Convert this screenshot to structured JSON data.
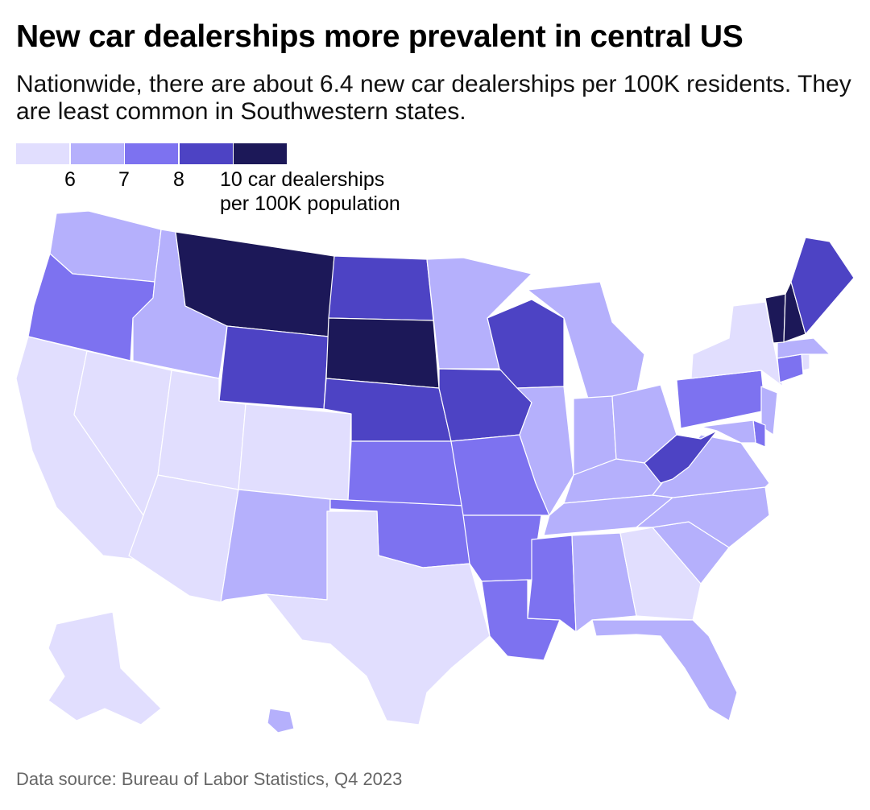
{
  "title": "New car dealerships more prevalent in central US",
  "subtitle": "Nationwide, there are about 6.4 new car dealerships per 100K residents. They are least common in Southwestern states.",
  "legend": {
    "bins": [
      {
        "label": "<6",
        "color": "#e1defe"
      },
      {
        "label": "6–7",
        "color": "#b5b0fc"
      },
      {
        "label": "7–8",
        "color": "#7d72f0"
      },
      {
        "label": "8–10",
        "color": "#4d43c4"
      },
      {
        "label": "10+",
        "color": "#1c1858"
      }
    ],
    "ticks": [
      "6",
      "7",
      "8",
      "10 car dealerships"
    ],
    "unit_line2": "per 100K population"
  },
  "source": "Data source: Bureau of Labor Statistics, Q4 2023",
  "chart_data": {
    "type": "choropleth",
    "title": "New car dealerships more prevalent in central US",
    "measure": "New car dealerships per 100K population",
    "national_average": 6.4,
    "bin_breaks": [
      6,
      7,
      8,
      10
    ],
    "state_bins": {
      "WA": 1,
      "OR": 2,
      "CA": 0,
      "NV": 0,
      "ID": 1,
      "MT": 4,
      "WY": 3,
      "UT": 0,
      "AZ": 0,
      "CO": 0,
      "NM": 1,
      "ND": 3,
      "SD": 4,
      "NE": 3,
      "KS": 2,
      "OK": 2,
      "TX": 0,
      "MN": 1,
      "IA": 3,
      "MO": 2,
      "AR": 2,
      "LA": 2,
      "WI": 3,
      "IL": 1,
      "MS": 2,
      "MI": 1,
      "IN": 1,
      "OH": 1,
      "KY": 1,
      "TN": 1,
      "AL": 1,
      "GA": 0,
      "FL": 1,
      "SC": 1,
      "NC": 1,
      "VA": 1,
      "WV": 3,
      "PA": 2,
      "NY": 0,
      "ME": 3,
      "VT": 4,
      "NH": 4,
      "MA": 1,
      "CT": 2,
      "RI": 0,
      "NJ": 1,
      "DE": 2,
      "MD": 1,
      "AK": 0,
      "HI": 1
    }
  }
}
